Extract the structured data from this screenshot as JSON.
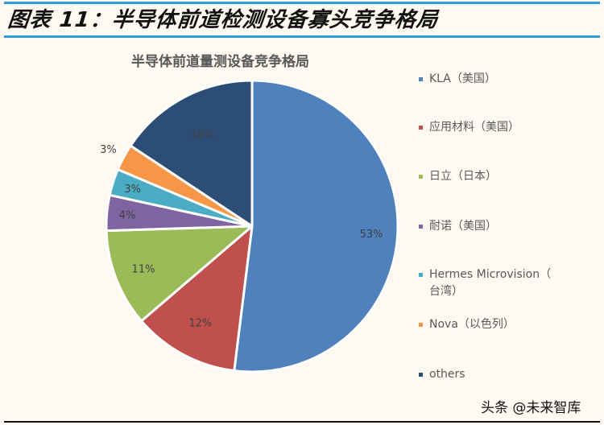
{
  "header": {
    "title": "图表 11：半导体前道检测设备寡头竞争格局"
  },
  "watermark": "头条 @未来智库",
  "chart_data": {
    "type": "pie",
    "title": "半导体前道量测设备竞争格局",
    "start_angle": "12 o'clock, clockwise",
    "legend_position": "right",
    "slices": [
      {
        "label": "KLA（美国）",
        "value": 53,
        "display": "53%",
        "color": "#4f81bd"
      },
      {
        "label": "应用材料（美国）",
        "value": 12,
        "display": "12%",
        "color": "#c0504d"
      },
      {
        "label": "日立（日本）",
        "value": 11,
        "display": "11%",
        "color": "#9bbb59"
      },
      {
        "label": "耐诺（美国）",
        "value": 4,
        "display": "4%",
        "color": "#8064a2"
      },
      {
        "label": "Hermes Microvision（台湾）",
        "value": 3,
        "display": "3%",
        "color": "#4bacc6"
      },
      {
        "label": "Nova（以色列）",
        "value": 3,
        "display": "3%",
        "color": "#f79646"
      },
      {
        "label": "others",
        "value": 16,
        "display": "16%",
        "color": "#2c4d75"
      }
    ]
  },
  "legend": {
    "items": [
      {
        "line1": "KLA（美国）",
        "line2": ""
      },
      {
        "line1": "应用材料（美国）",
        "line2": ""
      },
      {
        "line1": "日立（日本）",
        "line2": ""
      },
      {
        "line1": "耐诺（美国）",
        "line2": ""
      },
      {
        "line1": "Hermes Microvision（",
        "line2": "台湾）"
      },
      {
        "line1": "Nova（以色列）",
        "line2": ""
      },
      {
        "line1": "others",
        "line2": ""
      }
    ]
  }
}
